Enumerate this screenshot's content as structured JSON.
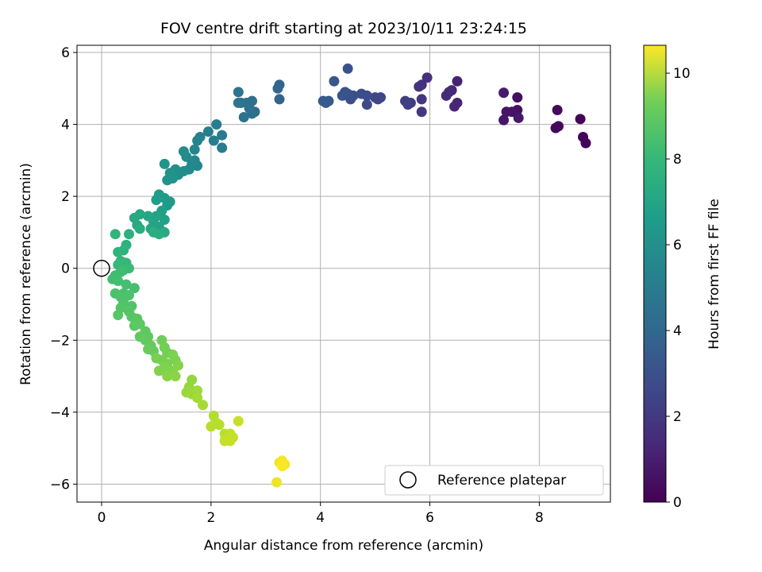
{
  "chart_data": {
    "type": "scatter",
    "title": "FOV centre drift starting at 2023/10/11 23:24:15",
    "xlabel": "Angular distance from reference (arcmin)",
    "ylabel": "Rotation from reference (arcmin)",
    "xlim": [
      -0.45,
      9.3
    ],
    "ylim": [
      -6.5,
      6.2
    ],
    "xticks": [
      0,
      2,
      4,
      6,
      8
    ],
    "yticks": [
      -6,
      -4,
      -2,
      0,
      2,
      4,
      6
    ],
    "grid": true,
    "colormap": "viridis",
    "colorbar": {
      "label": "Hours from first FF file",
      "min": 0,
      "max": 10.65,
      "ticks": [
        0,
        2,
        4,
        6,
        8,
        10
      ]
    },
    "legend": {
      "position": "lower right",
      "entries": [
        "Reference platepar"
      ]
    },
    "reference_point": {
      "x": 0,
      "y": 0,
      "label": "Reference platepar"
    },
    "points": [
      [
        8.85,
        3.48,
        0.05
      ],
      [
        8.8,
        3.65,
        0.1
      ],
      [
        8.75,
        4.15,
        0.15
      ],
      [
        8.35,
        3.95,
        0.2
      ],
      [
        8.3,
        3.9,
        0.25
      ],
      [
        8.33,
        4.4,
        0.3
      ],
      [
        7.6,
        4.75,
        0.4
      ],
      [
        7.6,
        4.4,
        0.5
      ],
      [
        7.5,
        4.35,
        0.55
      ],
      [
        7.4,
        4.35,
        0.6
      ],
      [
        7.35,
        4.12,
        0.65
      ],
      [
        7.62,
        4.18,
        0.7
      ],
      [
        7.35,
        4.88,
        0.75
      ],
      [
        6.5,
        5.2,
        1.0
      ],
      [
        6.5,
        4.6,
        1.1
      ],
      [
        6.45,
        4.5,
        1.15
      ],
      [
        6.4,
        4.95,
        1.2
      ],
      [
        6.3,
        4.8,
        1.25
      ],
      [
        6.35,
        4.9,
        1.3
      ],
      [
        5.95,
        5.3,
        1.5
      ],
      [
        5.85,
        5.1,
        1.55
      ],
      [
        5.8,
        5.05,
        1.6
      ],
      [
        5.85,
        4.7,
        1.7
      ],
      [
        5.85,
        4.35,
        1.75
      ],
      [
        5.65,
        4.6,
        1.9
      ],
      [
        5.6,
        4.55,
        2.0
      ],
      [
        5.55,
        4.65,
        2.05
      ],
      [
        5.1,
        4.75,
        2.2
      ],
      [
        5.05,
        4.7,
        2.25
      ],
      [
        5.0,
        4.75,
        2.3
      ],
      [
        4.85,
        4.55,
        2.4
      ],
      [
        4.85,
        4.8,
        2.45
      ],
      [
        4.75,
        4.85,
        2.5
      ],
      [
        4.6,
        4.8,
        2.6
      ],
      [
        4.55,
        4.7,
        2.65
      ],
      [
        4.5,
        4.85,
        2.7
      ],
      [
        4.45,
        4.9,
        2.75
      ],
      [
        4.4,
        4.8,
        2.8
      ],
      [
        4.5,
        5.55,
        2.7
      ],
      [
        4.25,
        5.2,
        2.9
      ],
      [
        4.1,
        4.6,
        3.0
      ],
      [
        4.15,
        4.65,
        3.05
      ],
      [
        4.05,
        4.65,
        3.1
      ],
      [
        3.25,
        5.1,
        3.4
      ],
      [
        3.25,
        4.7,
        3.45
      ],
      [
        3.22,
        5.0,
        3.5
      ],
      [
        2.8,
        4.35,
        3.8
      ],
      [
        2.75,
        4.3,
        3.85
      ],
      [
        2.7,
        4.45,
        3.9
      ],
      [
        2.75,
        4.65,
        3.95
      ],
      [
        2.65,
        4.6,
        4.0
      ],
      [
        2.6,
        4.2,
        4.05
      ],
      [
        2.55,
        4.6,
        4.1
      ],
      [
        2.5,
        4.9,
        4.15
      ],
      [
        2.5,
        4.6,
        4.2
      ],
      [
        2.2,
        3.7,
        4.4
      ],
      [
        2.2,
        3.35,
        4.45
      ],
      [
        2.1,
        4.0,
        4.5
      ],
      [
        2.05,
        3.55,
        4.55
      ],
      [
        1.95,
        3.8,
        4.6
      ],
      [
        1.8,
        3.65,
        4.7
      ],
      [
        1.75,
        3.55,
        4.75
      ],
      [
        1.7,
        3.3,
        4.8
      ],
      [
        1.7,
        3.0,
        4.9
      ],
      [
        1.75,
        2.85,
        4.95
      ],
      [
        1.65,
        2.9,
        5.0
      ],
      [
        1.6,
        2.75,
        5.05
      ],
      [
        1.55,
        3.1,
        5.1
      ],
      [
        1.5,
        3.25,
        5.15
      ],
      [
        1.5,
        2.7,
        5.2
      ],
      [
        1.4,
        2.6,
        5.3
      ],
      [
        1.35,
        2.75,
        5.35
      ],
      [
        1.25,
        2.65,
        5.4
      ],
      [
        1.2,
        2.45,
        5.45
      ],
      [
        1.15,
        2.9,
        5.5
      ],
      [
        1.3,
        2.5,
        5.55
      ],
      [
        1.25,
        1.85,
        5.7
      ],
      [
        1.2,
        1.75,
        5.75
      ],
      [
        1.15,
        1.95,
        5.8
      ],
      [
        1.05,
        2.05,
        5.85
      ],
      [
        1.0,
        1.9,
        5.9
      ],
      [
        1.1,
        1.6,
        6.0
      ],
      [
        1.15,
        1.35,
        6.05
      ],
      [
        1.05,
        1.15,
        6.1
      ],
      [
        1.0,
        1.45,
        6.15
      ],
      [
        0.95,
        1.3,
        6.2
      ],
      [
        0.9,
        1.1,
        6.25
      ],
      [
        0.85,
        1.45,
        6.3
      ],
      [
        0.7,
        1.5,
        6.35
      ],
      [
        0.65,
        1.2,
        6.4
      ],
      [
        0.6,
        1.4,
        6.45
      ],
      [
        1.15,
        1.0,
        6.5
      ],
      [
        1.05,
        0.95,
        6.55
      ],
      [
        0.95,
        1.0,
        6.6
      ],
      [
        0.7,
        1.1,
        6.55
      ],
      [
        0.5,
        0.95,
        6.75
      ],
      [
        0.45,
        0.65,
        6.8
      ],
      [
        0.4,
        0.5,
        6.85
      ],
      [
        0.3,
        0.45,
        6.9
      ],
      [
        0.25,
        0.95,
        6.95
      ],
      [
        0.35,
        0.2,
        7.05
      ],
      [
        0.45,
        0.15,
        7.1
      ],
      [
        0.3,
        0.1,
        7.15
      ],
      [
        0.5,
        0.0,
        7.2
      ],
      [
        0.4,
        -0.05,
        7.25
      ],
      [
        0.35,
        -0.1,
        7.3
      ],
      [
        0.25,
        -0.2,
        7.3
      ],
      [
        0.2,
        -0.3,
        7.35
      ],
      [
        0.3,
        -0.35,
        7.4
      ],
      [
        0.45,
        -0.45,
        7.45
      ],
      [
        0.6,
        -0.55,
        7.5
      ],
      [
        0.4,
        -0.7,
        7.55
      ],
      [
        0.25,
        -0.7,
        7.55
      ],
      [
        0.35,
        -0.8,
        7.6
      ],
      [
        0.5,
        -0.75,
        7.6
      ],
      [
        0.4,
        -0.95,
        7.65
      ],
      [
        0.55,
        -1.05,
        7.7
      ],
      [
        0.5,
        -1.2,
        7.75
      ],
      [
        0.35,
        -1.1,
        7.75
      ],
      [
        0.3,
        -1.3,
        7.8
      ],
      [
        0.55,
        -1.35,
        7.8
      ],
      [
        0.65,
        -1.4,
        7.85
      ],
      [
        0.7,
        -1.55,
        7.9
      ],
      [
        0.6,
        -1.6,
        7.9
      ],
      [
        0.8,
        -1.75,
        7.95
      ],
      [
        0.85,
        -1.9,
        8.0
      ],
      [
        0.7,
        -1.9,
        8.0
      ],
      [
        0.8,
        -2.0,
        8.05
      ],
      [
        0.9,
        -2.15,
        8.1
      ],
      [
        0.95,
        -2.3,
        8.1
      ],
      [
        0.85,
        -2.25,
        8.15
      ],
      [
        1.1,
        -2.0,
        8.3
      ],
      [
        1.15,
        -2.2,
        8.35
      ],
      [
        1.2,
        -2.35,
        8.35
      ],
      [
        1.0,
        -2.5,
        8.4
      ],
      [
        1.1,
        -2.55,
        8.45
      ],
      [
        1.2,
        -2.65,
        8.45
      ],
      [
        1.3,
        -2.4,
        8.5
      ],
      [
        1.35,
        -2.55,
        8.5
      ],
      [
        1.15,
        -2.75,
        8.55
      ],
      [
        1.05,
        -2.85,
        8.6
      ],
      [
        1.3,
        -2.85,
        8.6
      ],
      [
        1.4,
        -2.7,
        8.65
      ],
      [
        1.2,
        -3.0,
        8.7
      ],
      [
        1.35,
        -3.0,
        8.75
      ],
      [
        1.65,
        -3.1,
        8.9
      ],
      [
        1.6,
        -3.3,
        8.95
      ],
      [
        1.55,
        -3.45,
        9.0
      ],
      [
        1.65,
        -3.5,
        9.05
      ],
      [
        1.75,
        -3.4,
        9.1
      ],
      [
        1.75,
        -3.6,
        9.15
      ],
      [
        1.85,
        -3.8,
        9.2
      ],
      [
        2.05,
        -4.1,
        9.4
      ],
      [
        2.1,
        -4.3,
        9.45
      ],
      [
        2.0,
        -4.4,
        9.5
      ],
      [
        2.15,
        -4.35,
        9.5
      ],
      [
        2.25,
        -4.6,
        9.55
      ],
      [
        2.3,
        -4.75,
        9.6
      ],
      [
        2.35,
        -4.6,
        9.65
      ],
      [
        2.4,
        -4.7,
        9.7
      ],
      [
        2.25,
        -4.8,
        9.7
      ],
      [
        2.35,
        -4.8,
        9.75
      ],
      [
        2.5,
        -4.25,
        9.75
      ],
      [
        3.2,
        -5.95,
        10.4
      ],
      [
        3.25,
        -5.4,
        10.45
      ],
      [
        3.3,
        -5.35,
        10.5
      ],
      [
        3.35,
        -5.45,
        10.55
      ],
      [
        3.3,
        -5.5,
        10.6
      ]
    ]
  }
}
